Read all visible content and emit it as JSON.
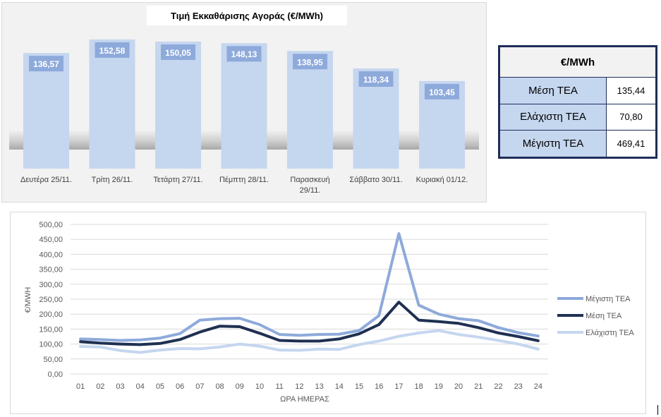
{
  "chart_data": [
    {
      "type": "bar",
      "title": "Τιμή Εκκαθάρισης Αγοράς (€/MWh)",
      "categories": [
        "Δευτέρα 25/11.",
        "Τρίτη 26/11.",
        "Τετάρτη 27/11.",
        "Πέμπτη 28/11.",
        "Παρασκευή 29/11.",
        "Σάββατο 30/11.",
        "Κυριακή 01/12."
      ],
      "category_lines": [
        [
          "Δευτέρα 25/11."
        ],
        [
          "Τρίτη 26/11."
        ],
        [
          "Τετάρτη 27/11."
        ],
        [
          "Πέμπτη 28/11."
        ],
        [
          "Παρασκευή",
          "29/11."
        ],
        [
          "Σάββατο 30/11."
        ],
        [
          "Κυριακή 01/12."
        ]
      ],
      "values": [
        136.57,
        152.58,
        150.05,
        148.13,
        138.95,
        118.34,
        103.45
      ],
      "value_labels": [
        "136,57",
        "152,58",
        "150,05",
        "148,13",
        "138,95",
        "118,34",
        "103,45"
      ],
      "bar_color": "#c5d6ef",
      "label_color": "#8eaadb",
      "grid": false
    },
    {
      "type": "line",
      "xlabel": "ΩΡΑ ΗΜΕΡΑΣ",
      "ylabel": "€/MWH",
      "x": [
        "01",
        "02",
        "03",
        "04",
        "05",
        "06",
        "07",
        "08",
        "09",
        "10",
        "11",
        "12",
        "13",
        "14",
        "15",
        "16",
        "17",
        "18",
        "19",
        "20",
        "21",
        "22",
        "23",
        "24"
      ],
      "ylim": [
        0,
        500
      ],
      "yticks": [
        "0,00",
        "50,00",
        "100,00",
        "150,00",
        "200,00",
        "250,00",
        "300,00",
        "350,00",
        "400,00",
        "450,00",
        "500,00"
      ],
      "grid": true,
      "legend_position": "right",
      "series": [
        {
          "name": "Μέγιστη ΤΕΑ",
          "color": "#8eaadb",
          "values": [
            117,
            115,
            112,
            114,
            120,
            135,
            180,
            185,
            186,
            165,
            132,
            129,
            132,
            133,
            145,
            195,
            469,
            230,
            200,
            185,
            178,
            155,
            138,
            127
          ]
        },
        {
          "name": "Μέση ΤΕΑ",
          "color": "#1f3052",
          "values": [
            108,
            103,
            100,
            98,
            102,
            115,
            140,
            160,
            158,
            136,
            112,
            110,
            110,
            117,
            134,
            165,
            240,
            180,
            175,
            169,
            155,
            137,
            125,
            111
          ]
        },
        {
          "name": "Ελάχιστη ΤΕΑ",
          "color": "#c5d6ef",
          "values": [
            92,
            90,
            78,
            72,
            80,
            85,
            84,
            90,
            100,
            93,
            80,
            79,
            83,
            82,
            98,
            110,
            126,
            137,
            145,
            132,
            123,
            112,
            100,
            83
          ]
        }
      ]
    }
  ],
  "stats_table": {
    "header": "€/MWh",
    "rows": [
      {
        "label": "Μέση ΤΕΑ",
        "value": "135,44"
      },
      {
        "label": "Ελάχιστη ΤΕΑ",
        "value": "70,80"
      },
      {
        "label": "Μέγιστη ΤΕΑ",
        "value": "469,41"
      }
    ]
  }
}
